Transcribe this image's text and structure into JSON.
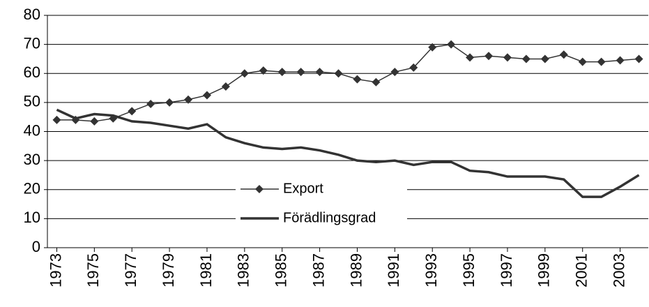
{
  "chart_data": {
    "type": "line",
    "x": [
      1973,
      1974,
      1975,
      1976,
      1977,
      1978,
      1979,
      1980,
      1981,
      1982,
      1983,
      1984,
      1985,
      1986,
      1987,
      1988,
      1989,
      1990,
      1991,
      1992,
      1993,
      1994,
      1995,
      1996,
      1997,
      1998,
      1999,
      2000,
      2001,
      2002,
      2003,
      2004
    ],
    "xlim": [
      1972.5,
      2004.5
    ],
    "xticks": [
      1973,
      1975,
      1977,
      1979,
      1981,
      1983,
      1985,
      1987,
      1989,
      1991,
      1993,
      1995,
      1997,
      1999,
      2001,
      2003
    ],
    "ylim": [
      0,
      80
    ],
    "yticks": [
      0,
      10,
      20,
      30,
      40,
      50,
      60,
      70,
      80
    ],
    "grid": true,
    "legend": "center",
    "series": [
      {
        "name": "Export",
        "color": "#333333",
        "marker": "diamond",
        "values": [
          44,
          44,
          43.5,
          44.5,
          47,
          49.5,
          50,
          51,
          52.5,
          55.5,
          60,
          61,
          60.5,
          60.5,
          60.5,
          60,
          58,
          57,
          60.5,
          62,
          69,
          70,
          65.5,
          66,
          65.5,
          65,
          65,
          66.5,
          64,
          64,
          64.5,
          65
        ]
      },
      {
        "name": "Förädlingsgrad",
        "color": "#333333",
        "marker": "none",
        "values": [
          47.5,
          44.5,
          46,
          45.5,
          43.5,
          43,
          42,
          41,
          42.5,
          38,
          36,
          34.5,
          34,
          34.5,
          33.5,
          32,
          30,
          29.5,
          30,
          28.5,
          29.5,
          29.5,
          26.5,
          26,
          24.5,
          24.5,
          24.5,
          23.5,
          17.5,
          17.5,
          21,
          25
        ]
      }
    ]
  }
}
